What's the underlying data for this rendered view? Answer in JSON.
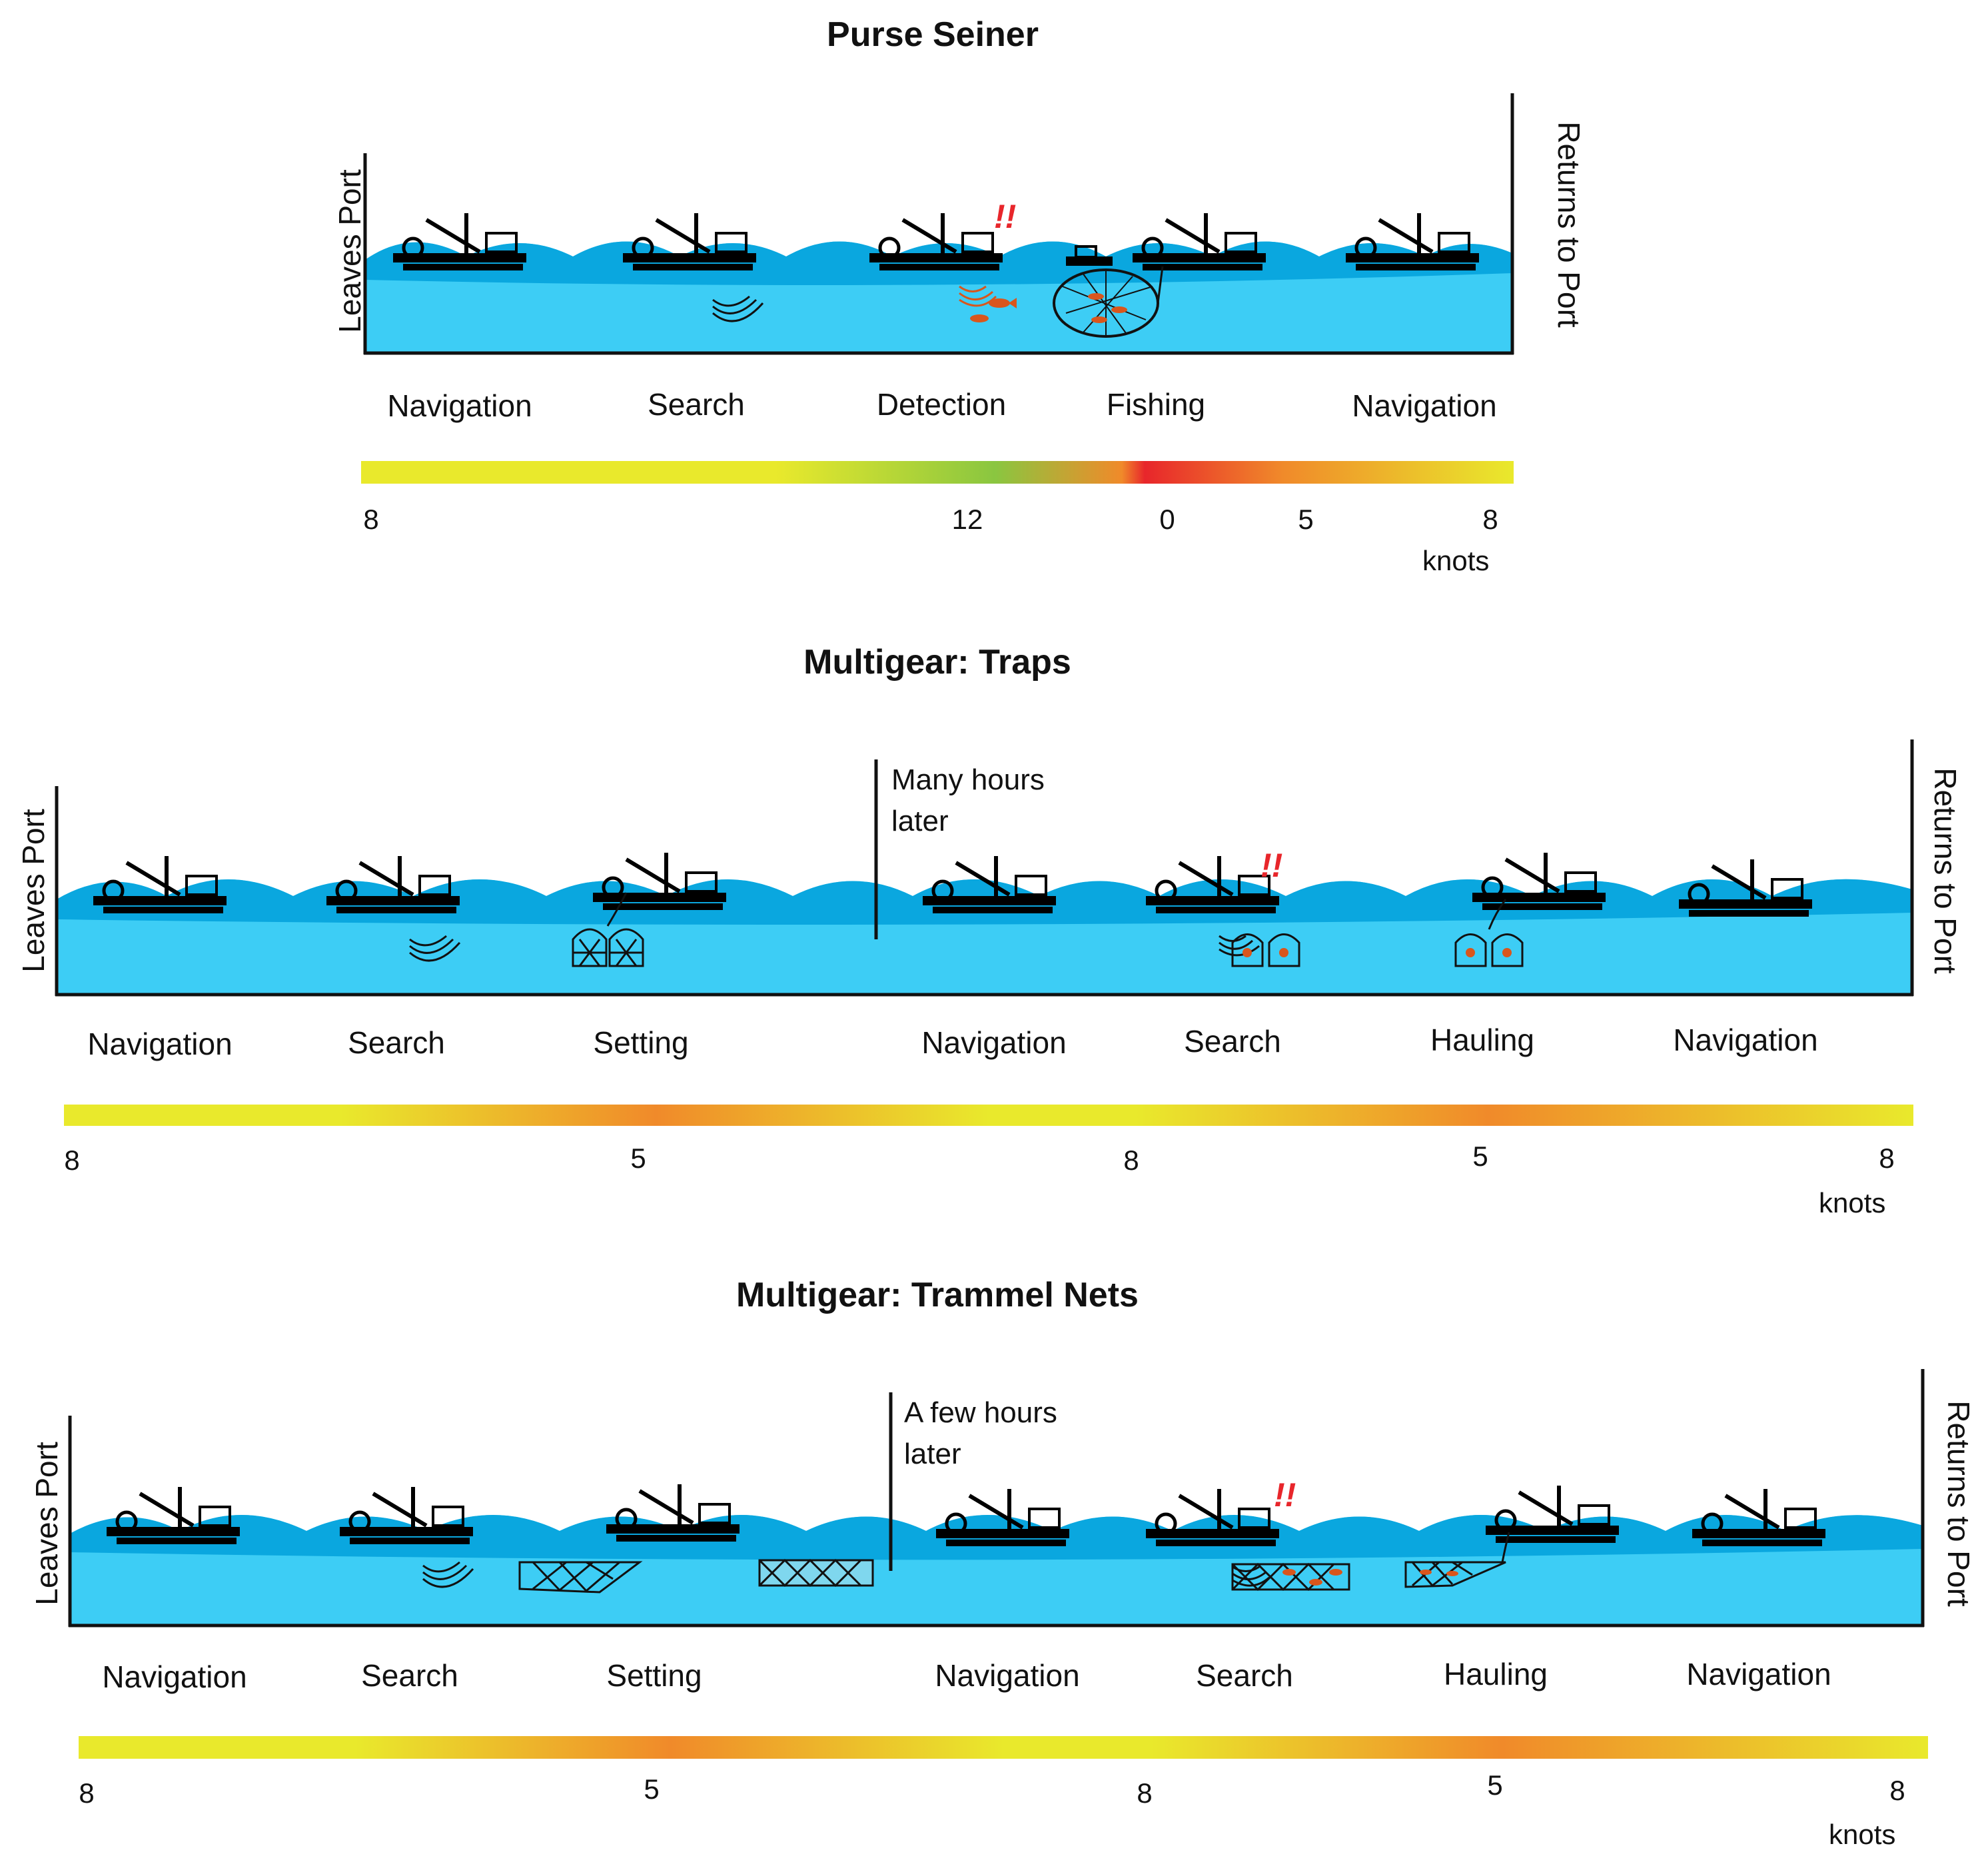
{
  "panels": [
    {
      "title": "Purse Seiner",
      "left_label": "Leaves Port",
      "right_label": "Returns to Port",
      "note": null,
      "stages": [
        "Navigation",
        "Search",
        "Detection",
        "Fishing",
        "Navigation"
      ],
      "speed_ticks": [
        "8",
        "12",
        "0",
        "5",
        "8"
      ],
      "unit": "knots",
      "alert": "!!"
    },
    {
      "title": "Multigear: Traps",
      "left_label": "Leaves Port",
      "right_label": "Returns to Port",
      "note": [
        "Many hours",
        "later"
      ],
      "stages": [
        "Navigation",
        "Search",
        "Setting",
        "Navigation",
        "Search",
        "Hauling",
        "Navigation"
      ],
      "speed_ticks": [
        "8",
        "5",
        "8",
        "5",
        "8"
      ],
      "unit": "knots",
      "alert": "!!"
    },
    {
      "title": "Multigear: Trammel Nets",
      "left_label": "Leaves Port",
      "right_label": "Returns to Port",
      "note": [
        "A few hours",
        "later"
      ],
      "stages": [
        "Navigation",
        "Search",
        "Setting",
        "Navigation",
        "Search",
        "Hauling",
        "Navigation"
      ],
      "speed_ticks": [
        "8",
        "5",
        "8",
        "5",
        "8"
      ],
      "unit": "knots",
      "alert": "!!"
    }
  ],
  "colors": {
    "sea": "#3dcdf5",
    "wave": "#0aa7df",
    "slow": "#e8262b",
    "mid": "#f08a2a",
    "fast": "#e9e92c",
    "sonar": "#8ac640"
  }
}
